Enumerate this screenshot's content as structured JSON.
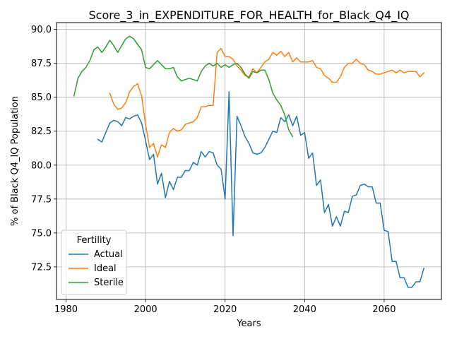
{
  "chart_data": {
    "type": "line",
    "title": "Score_3_in_EXPENDITURE_FOR_HEALTH_for_Black_Q4_IQ",
    "xlabel": "Years",
    "ylabel": "% of Black Q4_IQ Population",
    "xlim": [
      1977.6,
      1974.4
    ],
    "ylim": [
      70.1,
      90.5
    ],
    "xticks": [
      1980,
      2000,
      2020,
      2040,
      2060
    ],
    "yticks": [
      72.5,
      75.0,
      77.5,
      80.0,
      82.5,
      85.0,
      87.5,
      90.0
    ],
    "grid": true,
    "legend": {
      "title": "Fertility",
      "placement": "lower-left"
    },
    "series": [
      {
        "name": "Actual",
        "color": "#1f77b4",
        "x": [
          1988,
          1989,
          1990,
          1991,
          1992,
          1993,
          1994,
          1995,
          1996,
          1997,
          1998,
          1999,
          2000,
          2001,
          2002,
          2003,
          2004,
          2005,
          2006,
          2007,
          2008,
          2009,
          2010,
          2011,
          2012,
          2013,
          2014,
          2015,
          2016,
          2017,
          2018,
          2019,
          2020,
          2021,
          2022,
          2023,
          2024,
          2025,
          2026,
          2027,
          2028,
          2029,
          2030,
          2031,
          2032,
          2033,
          2034,
          2035,
          2036,
          2037,
          2038,
          2039,
          2040,
          2041,
          2042,
          2043,
          2044,
          2045,
          2046,
          2047,
          2048,
          2049,
          2050,
          2051,
          2052,
          2053,
          2054,
          2055,
          2056,
          2057,
          2058,
          2059,
          2060,
          2061,
          2062,
          2063,
          2064,
          2065,
          2066,
          2067,
          2068,
          2069,
          2070
        ],
        "y": [
          81.9,
          81.7,
          82.4,
          83.1,
          83.3,
          83.2,
          82.9,
          83.5,
          83.4,
          83.6,
          83.7,
          83.1,
          81.8,
          80.4,
          80.8,
          78.6,
          79.4,
          77.6,
          78.8,
          78.2,
          79.1,
          79.1,
          79.6,
          79.6,
          80.2,
          80.0,
          81.0,
          80.6,
          81.0,
          80.9,
          80.0,
          79.7,
          77.5,
          85.4,
          74.8,
          83.6,
          82.9,
          82.1,
          81.6,
          80.9,
          80.8,
          80.9,
          81.3,
          81.9,
          82.5,
          82.4,
          83.5,
          83.2,
          83.7,
          82.9,
          83.6,
          82.2,
          82.4,
          80.5,
          80.9,
          78.5,
          78.9,
          76.5,
          77.1,
          75.5,
          76.2,
          75.5,
          76.6,
          76.5,
          77.7,
          77.8,
          78.5,
          78.6,
          78.4,
          78.4,
          77.2,
          77.2,
          75.2,
          75.1,
          72.9,
          72.9,
          71.7,
          71.7,
          71.0,
          71.0,
          71.4,
          71.4,
          72.4
        ]
      },
      {
        "name": "Ideal",
        "color": "#ff7f0e",
        "x": [
          1991,
          1992,
          1993,
          1994,
          1995,
          1996,
          1997,
          1998,
          1999,
          2000,
          2001,
          2002,
          2003,
          2004,
          2005,
          2006,
          2007,
          2008,
          2009,
          2010,
          2011,
          2012,
          2013,
          2014,
          2015,
          2016,
          2017,
          2018,
          2019,
          2020,
          2021,
          2022,
          2023,
          2024,
          2025,
          2026,
          2027,
          2028,
          2029,
          2030,
          2031,
          2032,
          2033,
          2034,
          2035,
          2036,
          2037,
          2038,
          2039,
          2040,
          2041,
          2042,
          2043,
          2044,
          2045,
          2046,
          2047,
          2048,
          2049,
          2050,
          2051,
          2052,
          2053,
          2054,
          2055,
          2056,
          2057,
          2058,
          2059,
          2060,
          2061,
          2062,
          2063,
          2064,
          2065,
          2066,
          2067,
          2068,
          2069,
          2070
        ],
        "y": [
          85.3,
          84.5,
          84.1,
          84.2,
          84.6,
          85.4,
          85.8,
          86.0,
          85.1,
          83.0,
          81.3,
          81.6,
          80.6,
          81.5,
          81.3,
          82.4,
          82.7,
          82.5,
          82.6,
          83.0,
          83.1,
          83.2,
          83.5,
          84.3,
          84.3,
          84.4,
          84.4,
          88.3,
          88.6,
          88.0,
          88.0,
          87.8,
          87.3,
          87.0,
          86.6,
          86.5,
          87.1,
          86.8,
          87.2,
          87.6,
          87.8,
          88.3,
          88.1,
          88.4,
          88.0,
          88.3,
          87.6,
          87.9,
          87.6,
          87.6,
          87.6,
          87.7,
          87.2,
          87.1,
          86.6,
          86.4,
          86.1,
          86.1,
          86.5,
          87.2,
          87.5,
          87.5,
          87.8,
          87.5,
          87.4,
          87.0,
          86.9,
          86.7,
          86.7,
          86.8,
          86.9,
          87.0,
          86.8,
          87.0,
          86.8,
          86.9,
          86.9,
          86.9,
          86.5,
          86.8
        ]
      },
      {
        "name": "Sterile",
        "color": "#2ca02c",
        "x": [
          1982,
          1983,
          1984,
          1985,
          1986,
          1987,
          1988,
          1989,
          1990,
          1991,
          1992,
          1993,
          1994,
          1995,
          1996,
          1997,
          1998,
          1999,
          2000,
          2001,
          2002,
          2003,
          2004,
          2005,
          2006,
          2007,
          2008,
          2009,
          2010,
          2011,
          2012,
          2013,
          2014,
          2015,
          2016,
          2017,
          2018,
          2019,
          2020,
          2021,
          2022,
          2023,
          2024,
          2025,
          2026,
          2027,
          2028,
          2029,
          2030,
          2031,
          2032,
          2033,
          2034,
          2035,
          2036,
          2037
        ],
        "y": [
          85.1,
          86.4,
          86.9,
          87.2,
          87.7,
          88.5,
          88.7,
          88.3,
          88.7,
          89.2,
          88.8,
          88.3,
          88.8,
          89.3,
          89.5,
          89.3,
          88.9,
          88.5,
          87.2,
          87.1,
          87.4,
          87.7,
          87.4,
          87.1,
          87.1,
          87.2,
          86.5,
          86.2,
          86.3,
          86.4,
          86.3,
          86.2,
          86.9,
          87.3,
          87.5,
          87.3,
          87.5,
          87.2,
          87.4,
          87.2,
          87.4,
          87.5,
          87.2,
          86.7,
          86.4,
          86.9,
          86.8,
          87.0,
          87.0,
          86.3,
          85.3,
          84.8,
          84.4,
          83.7,
          82.6,
          82.1
        ]
      }
    ]
  }
}
